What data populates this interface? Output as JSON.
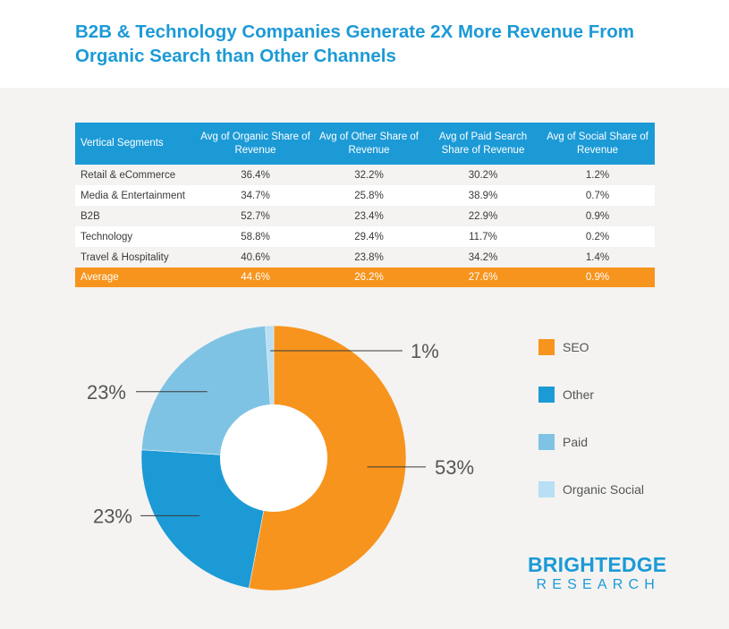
{
  "title": "B2B & Technology Companies Generate 2X More Revenue From Organic Search than Other Channels",
  "table": {
    "headers": [
      "Vertical Segments",
      "Avg of Organic Share of Revenue",
      "Avg of Other Share of Revenue",
      "Avg of Paid Search Share of Revenue",
      "Avg of Social Share of Revenue"
    ],
    "rows": [
      [
        "Retail & eCommerce",
        "36.4%",
        "32.2%",
        "30.2%",
        "1.2%"
      ],
      [
        "Media & Entertainment",
        "34.7%",
        "25.8%",
        "38.9%",
        "0.7%"
      ],
      [
        "B2B",
        "52.7%",
        "23.4%",
        "22.9%",
        "0.9%"
      ],
      [
        "Technology",
        "58.8%",
        "29.4%",
        "11.7%",
        "0.2%"
      ],
      [
        "Travel & Hospitality",
        "40.6%",
        "23.8%",
        "34.2%",
        "1.4%"
      ]
    ],
    "average": [
      "Average",
      "44.6%",
      "26.2%",
      "27.6%",
      "0.9%"
    ]
  },
  "chart_data": {
    "type": "pie",
    "donut": true,
    "labels": [
      "SEO",
      "Other",
      "Paid",
      "Organic Social"
    ],
    "values": [
      53,
      23,
      23,
      1
    ],
    "value_labels": [
      "53%",
      "23%",
      "23%",
      "1%"
    ],
    "colors": [
      "#f7941d",
      "#1c9ad6",
      "#7fc3e4",
      "#b8dff3"
    ],
    "legend_position": "right"
  },
  "brand": {
    "line1": "BRIGHTEDGE",
    "line2": "RESEARCH"
  }
}
